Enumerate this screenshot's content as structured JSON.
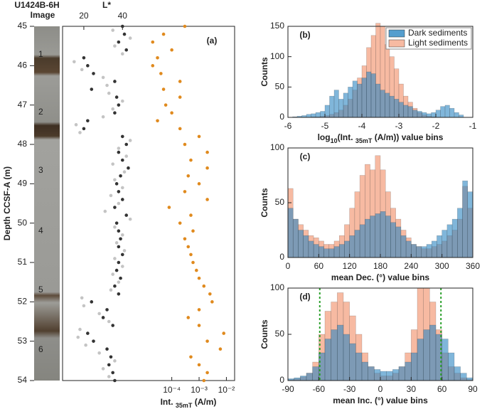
{
  "chart_data": [
    {
      "type": "scatter",
      "title": "(a)",
      "header": [
        "U1424B-6H",
        "Image"
      ],
      "sections": [
        "1",
        "2",
        "3",
        "4",
        "5",
        "6"
      ],
      "ylabel": "Depth CCSF-A (m)",
      "ylim": [
        45,
        54
      ],
      "yticks": [
        45,
        46,
        47,
        48,
        49,
        50,
        51,
        52,
        53,
        54
      ],
      "xlabel_top": "L*",
      "xlim": [
        9,
        98
      ],
      "xticks": [
        20,
        40
      ],
      "x2label": [
        "Int. ",
        "35mT",
        " (A/m)"
      ],
      "x2scale": "log",
      "x2lim": [
        1e-08,
        0.02
      ],
      "x2ticks": [
        {
          "value": 0.0001,
          "label": "10⁻⁴"
        },
        {
          "value": 0.001,
          "label": "10⁻³"
        },
        {
          "value": 0.01,
          "label": "10⁻²"
        }
      ],
      "series": [
        {
          "color": "#c4c4c4",
          "y": [
            45.1,
            45.3,
            45.5,
            45.7,
            45.9,
            46.1,
            46.3,
            46.5,
            46.7,
            46.9,
            47.1,
            47.3,
            47.5,
            47.7,
            47.9,
            48.1,
            48.3,
            48.5,
            48.7,
            48.9,
            49.1,
            49.3,
            49.5,
            49.7,
            49.9,
            50.1,
            50.3,
            50.5,
            50.7,
            50.9,
            51.1,
            51.3,
            51.5,
            51.7,
            51.9,
            52.1,
            52.3,
            52.5,
            52.7,
            52.9,
            53.1,
            53.3,
            53.5,
            53.7,
            53.9
          ],
          "x": [
            35,
            44,
            36,
            40,
            15,
            19,
            30,
            32,
            33,
            40,
            35,
            30,
            16,
            18,
            44,
            38,
            42,
            35,
            41,
            36,
            40,
            34,
            38,
            31,
            44,
            36,
            40,
            37,
            41,
            36,
            40,
            35,
            38,
            34,
            19,
            20,
            28,
            33,
            18,
            17,
            21,
            28,
            36,
            30,
            33
          ]
        },
        {
          "color": "#333333",
          "y": [
            45,
            45.2,
            45.4,
            45.6,
            45.8,
            46,
            46.2,
            46.4,
            46.6,
            46.8,
            47,
            47.2,
            47.4,
            47.6,
            47.8,
            48,
            48.2,
            48.4,
            48.6,
            48.8,
            49,
            49.2,
            49.4,
            49.6,
            49.8,
            50,
            50.2,
            50.4,
            50.6,
            50.8,
            51,
            51.2,
            51.4,
            51.6,
            51.8,
            52,
            52.2,
            52.4,
            52.6,
            52.8,
            53,
            53.2,
            53.4,
            53.6,
            53.8,
            54
          ],
          "x": [
            40,
            41,
            38,
            42,
            20,
            22,
            25,
            36,
            24,
            37,
            38,
            36,
            22,
            20,
            40,
            42,
            38,
            40,
            43,
            39,
            37,
            38,
            40,
            36,
            42,
            37,
            38,
            39,
            38,
            40,
            38,
            37,
            39,
            36,
            38,
            24,
            32,
            30,
            35,
            22,
            25,
            32,
            34,
            33,
            35,
            36
          ]
        },
        {
          "color": "#e08a1e",
          "axis": "x2",
          "y": [
            45,
            45.2,
            45.4,
            45.6,
            45.8,
            46,
            46.2,
            46.4,
            46.6,
            46.8,
            47,
            47.2,
            47.4,
            47.6,
            47.8,
            48,
            48.2,
            48.4,
            48.6,
            48.8,
            49,
            49.2,
            49.4,
            49.6,
            49.8,
            50,
            50.2,
            50.4,
            50.6,
            50.8,
            51,
            51.2,
            51.4,
            51.6,
            51.8,
            52,
            52.2,
            52.4,
            52.6,
            52.8,
            53,
            53.2,
            53.4,
            53.6,
            53.8,
            54
          ],
          "x": [
            0.0003,
            5e-05,
            2e-05,
            0.0001,
            3e-05,
            2e-05,
            4e-05,
            0.0002,
            5e-05,
            0.0002,
            6e-05,
            0.0001,
            3e-05,
            0.0002,
            0.001,
            0.0003,
            0.002,
            0.0005,
            0.002,
            0.0004,
            0.001,
            0.0003,
            0.002,
            8e-05,
            0.0005,
            0.0002,
            0.0006,
            0.0003,
            0.0004,
            0.0005,
            0.0006,
            0.0008,
            0.001,
            0.0015,
            0.0025,
            0.003,
            0.001,
            0.0004,
            0.001,
            0.008,
            0.002,
            0.006,
            0.0005,
            0.001,
            0.002,
            0.0015
          ]
        }
      ]
    },
    {
      "type": "histogram",
      "title": "(b)",
      "ylabel": "Counts",
      "xlabel": [
        "log",
        "10",
        "(Int. ",
        "35mT",
        " (A/m)) value bins"
      ],
      "bins": [
        -6,
        -5.875,
        -5.75,
        -5.625,
        -5.5,
        -5.375,
        -5.25,
        -5.125,
        -5,
        -4.875,
        -4.75,
        -4.625,
        -4.5,
        -4.375,
        -4.25,
        -4.125,
        -4,
        -3.875,
        -3.75,
        -3.625,
        -3.5,
        -3.375,
        -3.25,
        -3.125,
        -3,
        -2.875,
        -2.75,
        -2.625,
        -2.5,
        -2.375,
        -2.25,
        -2.125,
        -2,
        -1.875,
        -1.75,
        -1.625,
        -1.5,
        -1.375,
        -1.25,
        -1.125,
        -1
      ],
      "xlim": [
        -6,
        -1
      ],
      "xticks": [
        -6,
        -5,
        -4,
        -3,
        -2,
        -1
      ],
      "ylim": [
        0,
        150
      ],
      "yticks": [
        0,
        50,
        100,
        150
      ],
      "legend": "upper right",
      "series": [
        {
          "name": "Light sediments",
          "color": "#f5a98b",
          "values": [
            0,
            0,
            0,
            0,
            0,
            1,
            1,
            2,
            3,
            5,
            8,
            12,
            20,
            30,
            45,
            65,
            85,
            115,
            135,
            155,
            150,
            120,
            100,
            80,
            55,
            35,
            25,
            15,
            8,
            4,
            2,
            1,
            0,
            0,
            0,
            0,
            0,
            0,
            0,
            0
          ]
        },
        {
          "name": "Dark sediments",
          "color": "#2b86c2",
          "values": [
            0,
            1,
            2,
            3,
            5,
            6,
            8,
            10,
            20,
            35,
            45,
            30,
            40,
            50,
            60,
            55,
            65,
            75,
            72,
            55,
            45,
            40,
            35,
            30,
            25,
            20,
            18,
            12,
            10,
            8,
            6,
            8,
            12,
            18,
            20,
            15,
            8,
            4,
            0,
            0
          ]
        }
      ]
    },
    {
      "type": "histogram",
      "title": "(c)",
      "ylabel": "Counts",
      "xlabel": "mean Dec. (°) value bins",
      "bins": [
        0,
        10,
        20,
        30,
        40,
        50,
        60,
        70,
        80,
        90,
        100,
        110,
        120,
        130,
        140,
        150,
        160,
        170,
        180,
        190,
        200,
        210,
        220,
        230,
        240,
        250,
        260,
        270,
        280,
        290,
        300,
        310,
        320,
        330,
        340,
        350,
        360
      ],
      "xlim": [
        0,
        360
      ],
      "xticks": [
        0,
        60,
        120,
        180,
        240,
        300,
        360
      ],
      "ylim": [
        0,
        100
      ],
      "yticks": [
        0,
        50,
        100
      ],
      "series": [
        {
          "name": "Light sediments",
          "color": "#f5a98b",
          "values": [
            63,
            35,
            30,
            25,
            20,
            18,
            15,
            12,
            12,
            15,
            20,
            30,
            45,
            60,
            75,
            85,
            80,
            93,
            80,
            60,
            45,
            35,
            25,
            18,
            12,
            10,
            8,
            8,
            10,
            12,
            15,
            20,
            25,
            35,
            65,
            45
          ]
        },
        {
          "name": "Dark sediments",
          "color": "#2b86c2",
          "values": [
            45,
            35,
            25,
            20,
            15,
            12,
            10,
            8,
            8,
            10,
            12,
            15,
            20,
            25,
            30,
            35,
            38,
            40,
            42,
            38,
            32,
            28,
            20,
            15,
            12,
            10,
            10,
            12,
            15,
            20,
            25,
            30,
            35,
            45,
            70,
            60
          ]
        }
      ]
    },
    {
      "type": "histogram",
      "title": "(d)",
      "ylabel": "Counts",
      "xlabel": "mean Inc. (°) value bins",
      "bins": [
        -90,
        -84,
        -78,
        -72,
        -66,
        -60,
        -54,
        -48,
        -42,
        -36,
        -30,
        -24,
        -18,
        -12,
        -6,
        0,
        6,
        12,
        18,
        24,
        30,
        36,
        42,
        48,
        54,
        60,
        66,
        72,
        78,
        84,
        90
      ],
      "xlim": [
        -90,
        90
      ],
      "xticks": [
        -90,
        -60,
        -30,
        0,
        30,
        60,
        90
      ],
      "ylim": [
        0,
        100
      ],
      "yticks": [
        0,
        50,
        100
      ],
      "vlines": [
        -59,
        59
      ],
      "vline_color": "#2ca02c",
      "series": [
        {
          "name": "Light sediments",
          "color": "#f5a98b",
          "values": [
            1,
            2,
            4,
            8,
            20,
            50,
            75,
            85,
            95,
            85,
            70,
            50,
            30,
            15,
            8,
            5,
            5,
            8,
            15,
            30,
            55,
            100,
            100,
            85,
            55,
            30,
            15,
            8,
            3,
            1
          ]
        },
        {
          "name": "Dark sediments",
          "color": "#2b86c2",
          "values": [
            2,
            3,
            5,
            8,
            15,
            30,
            45,
            55,
            60,
            50,
            40,
            30,
            20,
            15,
            12,
            10,
            10,
            12,
            15,
            20,
            30,
            45,
            55,
            60,
            50,
            45,
            30,
            15,
            8,
            3
          ]
        }
      ]
    }
  ]
}
